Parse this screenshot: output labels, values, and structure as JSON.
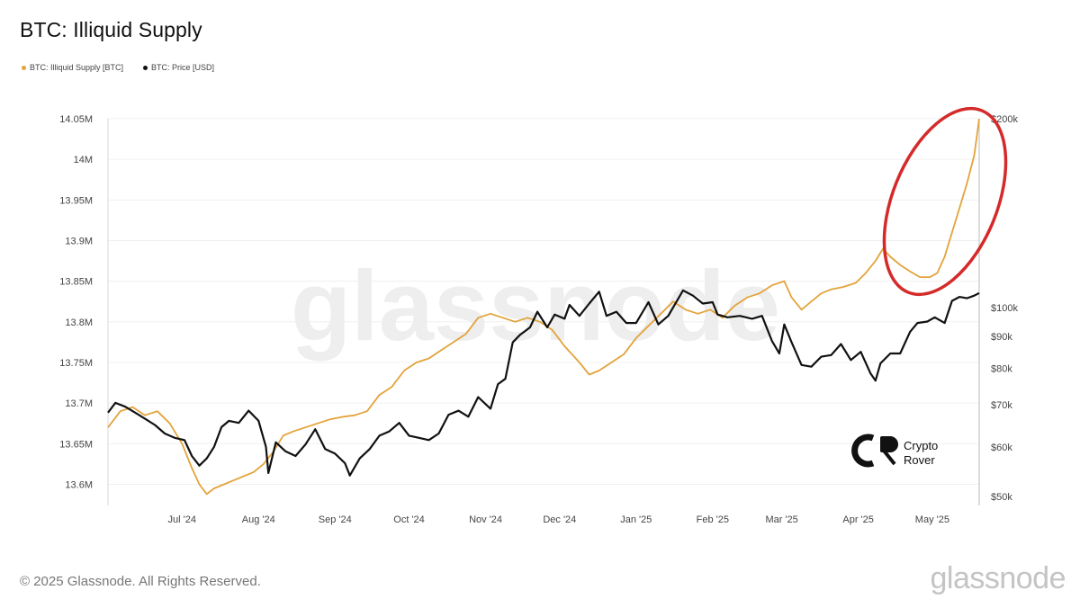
{
  "title": "BTC: Illiquid Supply",
  "legend": [
    {
      "label": "BTC: Illiquid Supply [BTC]",
      "color": "#e3a33b"
    },
    {
      "label": "BTC: Price [USD]",
      "color": "#111111"
    }
  ],
  "footer": {
    "copyright": "© 2025 Glassnode. All Rights Reserved.",
    "brand": "glassnode"
  },
  "watermark": "glassnode",
  "overlay_logo": {
    "line1": "Crypto",
    "line2": "Rover"
  },
  "highlight_color": "#d42a2a",
  "chart_data": {
    "type": "line",
    "x_range": [
      "2024-06-01",
      "2025-05-20"
    ],
    "x_ticks": [
      {
        "label": "Jul '24",
        "date": "2024-07-01"
      },
      {
        "label": "Aug '24",
        "date": "2024-08-01"
      },
      {
        "label": "Sep '24",
        "date": "2024-09-01"
      },
      {
        "label": "Oct '24",
        "date": "2024-10-01"
      },
      {
        "label": "Nov '24",
        "date": "2024-11-01"
      },
      {
        "label": "Dec '24",
        "date": "2024-12-01"
      },
      {
        "label": "Jan '25",
        "date": "2025-01-01"
      },
      {
        "label": "Feb '25",
        "date": "2025-02-01"
      },
      {
        "label": "Mar '25",
        "date": "2025-03-01"
      },
      {
        "label": "Apr '25",
        "date": "2025-04-01"
      },
      {
        "label": "May '25",
        "date": "2025-05-01"
      }
    ],
    "y_left": {
      "range": [
        13.585,
        14.05
      ],
      "ticks": [
        {
          "label": "14.05M",
          "value": 14.05
        },
        {
          "label": "14M",
          "value": 14.0
        },
        {
          "label": "13.95M",
          "value": 13.95
        },
        {
          "label": "13.9M",
          "value": 13.9
        },
        {
          "label": "13.85M",
          "value": 13.85
        },
        {
          "label": "13.8M",
          "value": 13.8
        },
        {
          "label": "13.75M",
          "value": 13.75
        },
        {
          "label": "13.7M",
          "value": 13.7
        },
        {
          "label": "13.65M",
          "value": 13.65
        },
        {
          "label": "13.6M",
          "value": 13.6
        }
      ]
    },
    "y_right": {
      "scale": "log",
      "range": [
        50000,
        200000
      ],
      "ticks": [
        {
          "label": "$200k",
          "value": 200000
        },
        {
          "label": "$100k",
          "value": 100000
        },
        {
          "label": "$90k",
          "value": 90000
        },
        {
          "label": "$80k",
          "value": 80000
        },
        {
          "label": "$70k",
          "value": 70000
        },
        {
          "label": "$60k",
          "value": 60000
        },
        {
          "label": "$50k",
          "value": 50000
        }
      ]
    },
    "grid": "horizontal",
    "series": [
      {
        "name": "BTC: Illiquid Supply [BTC]",
        "axis": "left",
        "color": "#e3a33b",
        "points": [
          [
            "2024-06-01",
            13.67
          ],
          [
            "2024-06-06",
            13.69
          ],
          [
            "2024-06-11",
            13.695
          ],
          [
            "2024-06-16",
            13.685
          ],
          [
            "2024-06-21",
            13.69
          ],
          [
            "2024-06-26",
            13.675
          ],
          [
            "2024-07-01",
            13.65
          ],
          [
            "2024-07-05",
            13.62
          ],
          [
            "2024-07-08",
            13.6
          ],
          [
            "2024-07-11",
            13.588
          ],
          [
            "2024-07-14",
            13.595
          ],
          [
            "2024-07-18",
            13.6
          ],
          [
            "2024-07-22",
            13.605
          ],
          [
            "2024-07-26",
            13.61
          ],
          [
            "2024-07-30",
            13.615
          ],
          [
            "2024-08-03",
            13.625
          ],
          [
            "2024-08-07",
            13.64
          ],
          [
            "2024-08-11",
            13.66
          ],
          [
            "2024-08-15",
            13.665
          ],
          [
            "2024-08-20",
            13.67
          ],
          [
            "2024-08-25",
            13.675
          ],
          [
            "2024-08-30",
            13.68
          ],
          [
            "2024-09-04",
            13.683
          ],
          [
            "2024-09-09",
            13.685
          ],
          [
            "2024-09-14",
            13.69
          ],
          [
            "2024-09-19",
            13.71
          ],
          [
            "2024-09-24",
            13.72
          ],
          [
            "2024-09-29",
            13.74
          ],
          [
            "2024-10-04",
            13.75
          ],
          [
            "2024-10-09",
            13.755
          ],
          [
            "2024-10-14",
            13.765
          ],
          [
            "2024-10-19",
            13.775
          ],
          [
            "2024-10-24",
            13.785
          ],
          [
            "2024-10-29",
            13.805
          ],
          [
            "2024-11-03",
            13.81
          ],
          [
            "2024-11-08",
            13.805
          ],
          [
            "2024-11-13",
            13.8
          ],
          [
            "2024-11-18",
            13.805
          ],
          [
            "2024-11-23",
            13.8
          ],
          [
            "2024-11-28",
            13.79
          ],
          [
            "2024-12-03",
            13.77
          ],
          [
            "2024-12-06",
            13.76
          ],
          [
            "2024-12-09",
            13.75
          ],
          [
            "2024-12-13",
            13.735
          ],
          [
            "2024-12-17",
            13.74
          ],
          [
            "2024-12-22",
            13.75
          ],
          [
            "2024-12-27",
            13.76
          ],
          [
            "2025-01-01",
            13.78
          ],
          [
            "2025-01-06",
            13.795
          ],
          [
            "2025-01-11",
            13.81
          ],
          [
            "2025-01-16",
            13.825
          ],
          [
            "2025-01-21",
            13.815
          ],
          [
            "2025-01-26",
            13.81
          ],
          [
            "2025-01-31",
            13.815
          ],
          [
            "2025-02-05",
            13.805
          ],
          [
            "2025-02-10",
            13.82
          ],
          [
            "2025-02-15",
            13.83
          ],
          [
            "2025-02-20",
            13.835
          ],
          [
            "2025-02-25",
            13.845
          ],
          [
            "2025-03-02",
            13.85
          ],
          [
            "2025-03-05",
            13.83
          ],
          [
            "2025-03-09",
            13.815
          ],
          [
            "2025-03-13",
            13.825
          ],
          [
            "2025-03-17",
            13.835
          ],
          [
            "2025-03-21",
            13.84
          ],
          [
            "2025-03-26",
            13.843
          ],
          [
            "2025-03-31",
            13.848
          ],
          [
            "2025-04-04",
            13.86
          ],
          [
            "2025-04-08",
            13.875
          ],
          [
            "2025-04-11",
            13.89
          ],
          [
            "2025-04-14",
            13.88
          ],
          [
            "2025-04-18",
            13.87
          ],
          [
            "2025-04-22",
            13.862
          ],
          [
            "2025-04-26",
            13.855
          ],
          [
            "2025-04-30",
            13.855
          ],
          [
            "2025-05-03",
            13.86
          ],
          [
            "2025-05-06",
            13.88
          ],
          [
            "2025-05-09",
            13.91
          ],
          [
            "2025-05-12",
            13.94
          ],
          [
            "2025-05-15",
            13.97
          ],
          [
            "2025-05-18",
            14.005
          ],
          [
            "2025-05-20",
            14.05
          ]
        ]
      },
      {
        "name": "BTC: Price [USD]",
        "axis": "right",
        "color": "#111111",
        "points": [
          [
            "2024-06-01",
            68000
          ],
          [
            "2024-06-04",
            70500
          ],
          [
            "2024-06-08",
            69500
          ],
          [
            "2024-06-12",
            68000
          ],
          [
            "2024-06-16",
            66500
          ],
          [
            "2024-06-20",
            65000
          ],
          [
            "2024-06-24",
            63000
          ],
          [
            "2024-06-28",
            62000
          ],
          [
            "2024-07-02",
            61500
          ],
          [
            "2024-07-05",
            58000
          ],
          [
            "2024-07-08",
            56000
          ],
          [
            "2024-07-11",
            57500
          ],
          [
            "2024-07-14",
            60000
          ],
          [
            "2024-07-17",
            64500
          ],
          [
            "2024-07-20",
            66000
          ],
          [
            "2024-07-24",
            65500
          ],
          [
            "2024-07-28",
            68500
          ],
          [
            "2024-08-01",
            66000
          ],
          [
            "2024-08-04",
            60000
          ],
          [
            "2024-08-05",
            54500
          ],
          [
            "2024-08-08",
            61000
          ],
          [
            "2024-08-12",
            59000
          ],
          [
            "2024-08-16",
            58000
          ],
          [
            "2024-08-20",
            60500
          ],
          [
            "2024-08-24",
            64000
          ],
          [
            "2024-08-28",
            59500
          ],
          [
            "2024-09-01",
            58500
          ],
          [
            "2024-09-05",
            56500
          ],
          [
            "2024-09-07",
            54000
          ],
          [
            "2024-09-11",
            57500
          ],
          [
            "2024-09-15",
            59500
          ],
          [
            "2024-09-19",
            62500
          ],
          [
            "2024-09-23",
            63500
          ],
          [
            "2024-09-27",
            65500
          ],
          [
            "2024-10-01",
            62500
          ],
          [
            "2024-10-05",
            62000
          ],
          [
            "2024-10-09",
            61500
          ],
          [
            "2024-10-13",
            63000
          ],
          [
            "2024-10-17",
            67500
          ],
          [
            "2024-10-21",
            68500
          ],
          [
            "2024-10-25",
            67000
          ],
          [
            "2024-10-29",
            72000
          ],
          [
            "2024-11-03",
            69000
          ],
          [
            "2024-11-06",
            75500
          ],
          [
            "2024-11-09",
            77000
          ],
          [
            "2024-11-12",
            88000
          ],
          [
            "2024-11-15",
            90500
          ],
          [
            "2024-11-19",
            93000
          ],
          [
            "2024-11-22",
            98500
          ],
          [
            "2024-11-26",
            93000
          ],
          [
            "2024-11-29",
            97500
          ],
          [
            "2024-12-03",
            96000
          ],
          [
            "2024-12-05",
            101000
          ],
          [
            "2024-12-09",
            97000
          ],
          [
            "2024-12-13",
            101500
          ],
          [
            "2024-12-17",
            106000
          ],
          [
            "2024-12-20",
            97000
          ],
          [
            "2024-12-24",
            98500
          ],
          [
            "2024-12-28",
            94500
          ],
          [
            "2025-01-01",
            94500
          ],
          [
            "2025-01-06",
            102000
          ],
          [
            "2025-01-10",
            94000
          ],
          [
            "2025-01-14",
            97000
          ],
          [
            "2025-01-20",
            106500
          ],
          [
            "2025-01-24",
            104500
          ],
          [
            "2025-01-28",
            101500
          ],
          [
            "2025-02-01",
            102000
          ],
          [
            "2025-02-03",
            97500
          ],
          [
            "2025-02-07",
            96500
          ],
          [
            "2025-02-12",
            97000
          ],
          [
            "2025-02-17",
            96000
          ],
          [
            "2025-02-21",
            97000
          ],
          [
            "2025-02-25",
            88500
          ],
          [
            "2025-02-28",
            84500
          ],
          [
            "2025-03-02",
            94000
          ],
          [
            "2025-03-05",
            88000
          ],
          [
            "2025-03-09",
            81000
          ],
          [
            "2025-03-13",
            80500
          ],
          [
            "2025-03-17",
            83500
          ],
          [
            "2025-03-21",
            84000
          ],
          [
            "2025-03-25",
            87500
          ],
          [
            "2025-03-29",
            82500
          ],
          [
            "2025-04-02",
            85000
          ],
          [
            "2025-04-06",
            78500
          ],
          [
            "2025-04-08",
            76500
          ],
          [
            "2025-04-10",
            81500
          ],
          [
            "2025-04-14",
            84500
          ],
          [
            "2025-04-18",
            84500
          ],
          [
            "2025-04-22",
            91500
          ],
          [
            "2025-04-25",
            94500
          ],
          [
            "2025-04-29",
            95000
          ],
          [
            "2025-05-02",
            96500
          ],
          [
            "2025-05-06",
            94500
          ],
          [
            "2025-05-09",
            102500
          ],
          [
            "2025-05-12",
            104000
          ],
          [
            "2025-05-15",
            103500
          ],
          [
            "2025-05-18",
            104500
          ],
          [
            "2025-05-20",
            105500
          ]
        ]
      }
    ]
  }
}
